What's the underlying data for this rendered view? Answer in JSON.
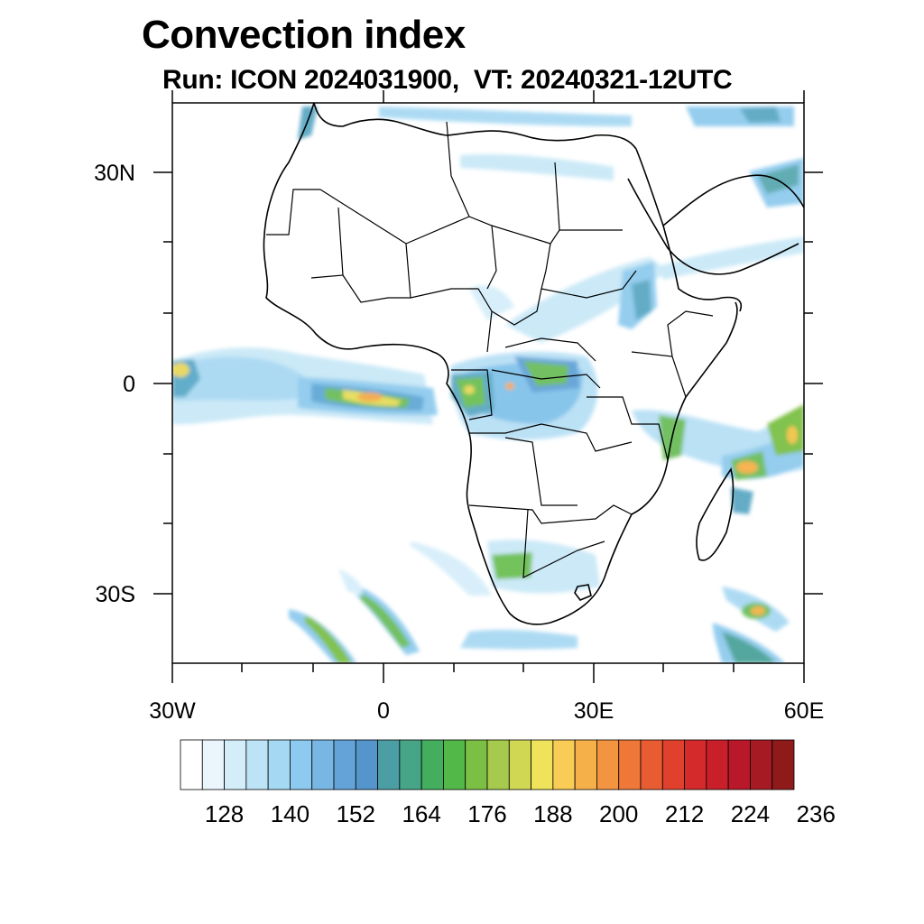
{
  "title": "Convection index",
  "subtitle": "Run: ICON 2024031900,  VT: 20240321-12UTC",
  "axes": {
    "lon_range": [
      -30,
      60
    ],
    "lat_range": [
      -40,
      40
    ],
    "x_ticks": [
      "30W",
      "0",
      "30E",
      "60E"
    ],
    "y_ticks": [
      "30N",
      "0",
      "30S"
    ]
  },
  "colorbar": {
    "labels": [
      "128",
      "140",
      "152",
      "164",
      "176",
      "188",
      "200",
      "212",
      "224",
      "236"
    ],
    "colors": [
      "#ffffff",
      "#eaf6fc",
      "#d3edf9",
      "#bde3f6",
      "#a5d8f3",
      "#8ccbef",
      "#78b7e4",
      "#63a3d8",
      "#5496cb",
      "#4b9ea3",
      "#45a586",
      "#43ae5e",
      "#52b848",
      "#7bbf44",
      "#a6ca4d",
      "#cfd753",
      "#eee35a",
      "#f8cc55",
      "#f6b04a",
      "#f39440",
      "#ef7838",
      "#e85c31",
      "#df412c",
      "#d42a2b",
      "#c81f2a",
      "#b8182a",
      "#a51a23",
      "#8e1a1a"
    ]
  }
}
